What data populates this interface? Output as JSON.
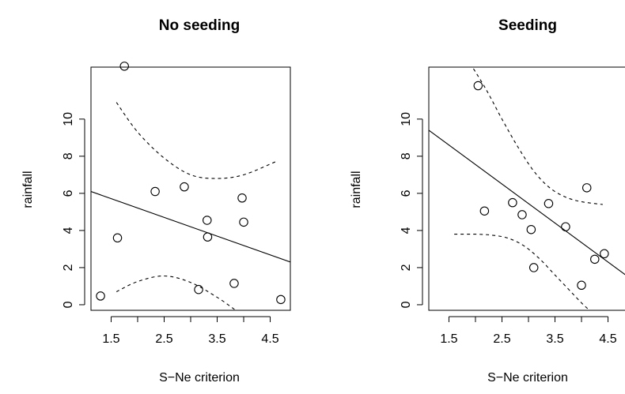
{
  "chart_data": [
    {
      "type": "scatter",
      "title": "No seeding",
      "xlabel": "S−Ne criterion",
      "ylabel": "rainfall",
      "xlim": [
        1.12,
        4.88
      ],
      "ylim": [
        -0.3,
        12.8
      ],
      "xticks": [
        1.5,
        2.0,
        2.5,
        3.0,
        3.5,
        4.0,
        4.5
      ],
      "xtick_labels": [
        "1.5",
        "",
        "2.5",
        "",
        "3.5",
        "",
        "4.5"
      ],
      "yticks": [
        0,
        2,
        4,
        6,
        8,
        10
      ],
      "ytick_labels": [
        "0",
        "2",
        "4",
        "6",
        "8",
        "10"
      ],
      "points": [
        {
          "x": 1.3,
          "y": 0.47
        },
        {
          "x": 1.62,
          "y": 3.6
        },
        {
          "x": 1.75,
          "y": 12.85
        },
        {
          "x": 2.33,
          "y": 6.1
        },
        {
          "x": 2.88,
          "y": 6.35
        },
        {
          "x": 3.15,
          "y": 0.82
        },
        {
          "x": 3.31,
          "y": 4.55
        },
        {
          "x": 3.32,
          "y": 3.65
        },
        {
          "x": 3.82,
          "y": 1.15
        },
        {
          "x": 3.97,
          "y": 5.75
        },
        {
          "x": 4.0,
          "y": 4.45
        },
        {
          "x": 4.7,
          "y": 0.28
        }
      ],
      "fit_line": {
        "x": [
          1.12,
          4.88
        ],
        "y": [
          6.1,
          2.3
        ]
      },
      "upper_band": {
        "x": [
          1.6,
          2.0,
          2.5,
          3.0,
          3.5,
          4.0,
          4.6
        ],
        "y": [
          10.9,
          9.3,
          7.9,
          7.0,
          6.8,
          7.0,
          7.7
        ]
      },
      "lower_band": {
        "x": [
          1.6,
          2.0,
          2.5,
          3.0,
          3.5,
          3.85
        ],
        "y": [
          0.7,
          1.25,
          1.55,
          1.2,
          0.4,
          -0.3
        ]
      }
    },
    {
      "type": "scatter",
      "title": "Seeding",
      "xlabel": "S−Ne criterion",
      "ylabel": "rainfall",
      "xlim": [
        1.12,
        4.88
      ],
      "ylim": [
        -0.3,
        12.8
      ],
      "xticks": [
        1.5,
        2.0,
        2.5,
        3.0,
        3.5,
        4.0,
        4.5
      ],
      "xtick_labels": [
        "1.5",
        "",
        "2.5",
        "",
        "3.5",
        "",
        "4.5"
      ],
      "yticks": [
        0,
        2,
        4,
        6,
        8,
        10
      ],
      "ytick_labels": [
        "0",
        "2",
        "4",
        "6",
        "8",
        "10"
      ],
      "points": [
        {
          "x": 2.05,
          "y": 11.8
        },
        {
          "x": 2.17,
          "y": 5.05
        },
        {
          "x": 2.7,
          "y": 5.5
        },
        {
          "x": 2.88,
          "y": 4.85
        },
        {
          "x": 3.05,
          "y": 4.05
        },
        {
          "x": 3.1,
          "y": 2.0
        },
        {
          "x": 3.38,
          "y": 5.45
        },
        {
          "x": 3.7,
          "y": 4.2
        },
        {
          "x": 4.0,
          "y": 1.05
        },
        {
          "x": 4.1,
          "y": 6.3
        },
        {
          "x": 4.25,
          "y": 2.45
        },
        {
          "x": 4.43,
          "y": 2.75
        }
      ],
      "fit_line": {
        "x": [
          1.12,
          4.88
        ],
        "y": [
          9.4,
          1.5
        ]
      },
      "upper_band": {
        "x": [
          1.9,
          2.2,
          2.5,
          2.8,
          3.1,
          3.4,
          3.7,
          4.0,
          4.4
        ],
        "y": [
          13.0,
          11.6,
          10.0,
          8.5,
          7.2,
          6.3,
          5.8,
          5.55,
          5.4
        ]
      },
      "lower_band": {
        "x": [
          1.6,
          2.0,
          2.3,
          2.6,
          2.9,
          3.2,
          3.5,
          3.8,
          4.0,
          4.15
        ],
        "y": [
          3.8,
          3.8,
          3.75,
          3.6,
          3.2,
          2.5,
          1.6,
          0.7,
          0.1,
          -0.3
        ]
      }
    }
  ]
}
